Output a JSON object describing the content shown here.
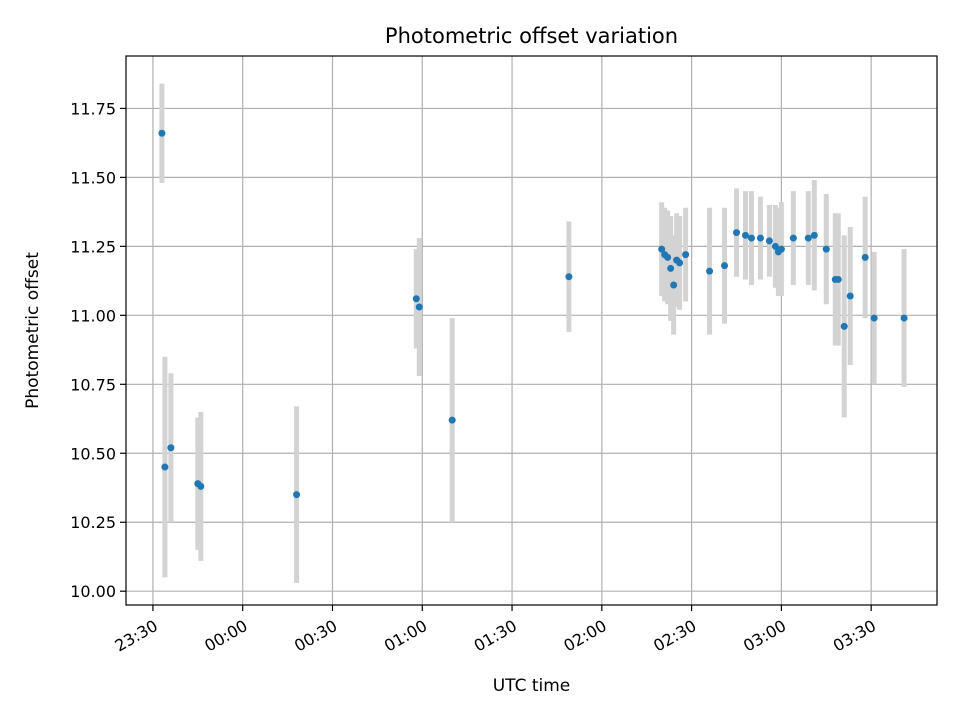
{
  "chart_data": {
    "type": "scatter",
    "title": "Photometric offset variation",
    "xlabel": "UTC time",
    "ylabel": "Photometric offset",
    "x_unit": "UTC time (HH:MM, starting before midnight)",
    "xlim": [
      "23:21",
      "03:52"
    ],
    "ylim": [
      9.95,
      11.94
    ],
    "grid": true,
    "legend": "none",
    "x_ticks": [
      "23:30",
      "00:00",
      "00:30",
      "01:00",
      "01:30",
      "02:00",
      "02:30",
      "03:00",
      "03:30"
    ],
    "y_ticks": [
      "10.00",
      "10.25",
      "10.50",
      "10.75",
      "11.00",
      "11.25",
      "11.50",
      "11.75"
    ],
    "marker_color": "#1f77b4",
    "errorbar_color": "#d3d3d3",
    "points": [
      {
        "x": "23:33",
        "y": 11.66,
        "err": 0.18
      },
      {
        "x": "23:34",
        "y": 10.45,
        "err": 0.4
      },
      {
        "x": "23:36",
        "y": 10.52,
        "err": 0.27
      },
      {
        "x": "23:45",
        "y": 10.39,
        "err": 0.24
      },
      {
        "x": "23:46",
        "y": 10.38,
        "err": 0.27
      },
      {
        "x": "00:18",
        "y": 10.35,
        "err": 0.32
      },
      {
        "x": "00:58",
        "y": 11.06,
        "err": 0.18
      },
      {
        "x": "00:59",
        "y": 11.03,
        "err": 0.25
      },
      {
        "x": "01:10",
        "y": 10.62,
        "err": 0.37
      },
      {
        "x": "01:49",
        "y": 11.14,
        "err": 0.2
      },
      {
        "x": "02:20",
        "y": 11.24,
        "err": 0.17
      },
      {
        "x": "02:21",
        "y": 11.22,
        "err": 0.17
      },
      {
        "x": "02:22",
        "y": 11.21,
        "err": 0.17
      },
      {
        "x": "02:23",
        "y": 11.17,
        "err": 0.19
      },
      {
        "x": "02:24",
        "y": 11.11,
        "err": 0.18
      },
      {
        "x": "02:25",
        "y": 11.2,
        "err": 0.17
      },
      {
        "x": "02:26",
        "y": 11.19,
        "err": 0.17
      },
      {
        "x": "02:28",
        "y": 11.22,
        "err": 0.17
      },
      {
        "x": "02:36",
        "y": 11.16,
        "err": 0.23
      },
      {
        "x": "02:41",
        "y": 11.18,
        "err": 0.21
      },
      {
        "x": "02:45",
        "y": 11.3,
        "err": 0.16
      },
      {
        "x": "02:48",
        "y": 11.29,
        "err": 0.16
      },
      {
        "x": "02:50",
        "y": 11.28,
        "err": 0.17
      },
      {
        "x": "02:53",
        "y": 11.28,
        "err": 0.15
      },
      {
        "x": "02:56",
        "y": 11.27,
        "err": 0.13
      },
      {
        "x": "02:58",
        "y": 11.25,
        "err": 0.15
      },
      {
        "x": "02:59",
        "y": 11.23,
        "err": 0.16
      },
      {
        "x": "03:00",
        "y": 11.24,
        "err": 0.17
      },
      {
        "x": "03:04",
        "y": 11.28,
        "err": 0.17
      },
      {
        "x": "03:09",
        "y": 11.28,
        "err": 0.17
      },
      {
        "x": "03:11",
        "y": 11.29,
        "err": 0.2
      },
      {
        "x": "03:15",
        "y": 11.24,
        "err": 0.2
      },
      {
        "x": "03:18",
        "y": 11.13,
        "err": 0.24
      },
      {
        "x": "03:19",
        "y": 11.13,
        "err": 0.24
      },
      {
        "x": "03:21",
        "y": 10.96,
        "err": 0.33
      },
      {
        "x": "03:23",
        "y": 11.07,
        "err": 0.25
      },
      {
        "x": "03:28",
        "y": 11.21,
        "err": 0.22
      },
      {
        "x": "03:31",
        "y": 10.99,
        "err": 0.24
      },
      {
        "x": "03:41",
        "y": 10.99,
        "err": 0.25
      }
    ]
  }
}
